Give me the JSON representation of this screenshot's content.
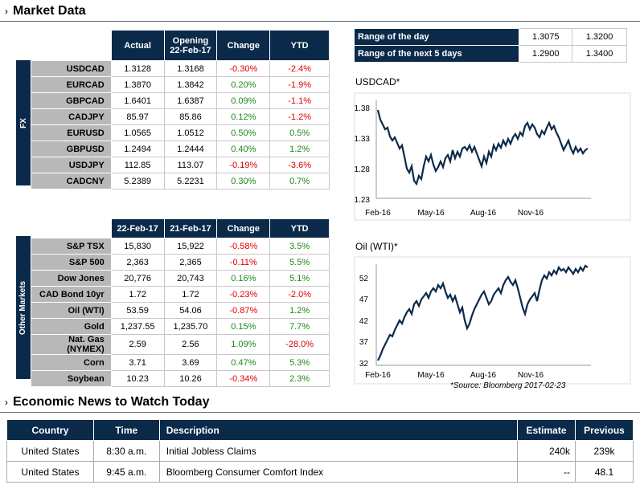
{
  "market_section": {
    "title": "Market Data"
  },
  "fx": {
    "side_label": "FX",
    "headers": {
      "actual": "Actual",
      "opening": "Opening",
      "opening_date": "22-Feb-17",
      "change": "Change",
      "ytd": "YTD"
    },
    "rows": [
      {
        "name": "USDCAD",
        "actual": "1.3128",
        "opening": "1.3168",
        "change": "-0.30%",
        "ytd": "-2.4%"
      },
      {
        "name": "EURCAD",
        "actual": "1.3870",
        "opening": "1.3842",
        "change": "0.20%",
        "ytd": "-1.9%"
      },
      {
        "name": "GBPCAD",
        "actual": "1.6401",
        "opening": "1.6387",
        "change": "0.09%",
        "ytd": "-1.1%"
      },
      {
        "name": "CADJPY",
        "actual": "85.97",
        "opening": "85.86",
        "change": "0.12%",
        "ytd": "-1.2%"
      },
      {
        "name": "EURUSD",
        "actual": "1.0565",
        "opening": "1.0512",
        "change": "0.50%",
        "ytd": "0.5%"
      },
      {
        "name": "GBPUSD",
        "actual": "1.2494",
        "opening": "1.2444",
        "change": "0.40%",
        "ytd": "1.2%"
      },
      {
        "name": "USDJPY",
        "actual": "112.85",
        "opening": "113.07",
        "change": "-0.19%",
        "ytd": "-3.6%"
      },
      {
        "name": "CADCNY",
        "actual": "5.2389",
        "opening": "5.2231",
        "change": "0.30%",
        "ytd": "0.7%"
      }
    ]
  },
  "ranges": [
    {
      "label": "Range of the day",
      "low": "1.3075",
      "high": "1.3200"
    },
    {
      "label": "Range of the next 5 days",
      "low": "1.2900",
      "high": "1.3400"
    }
  ],
  "charts": {
    "usdcad": {
      "title": "USDCAD*",
      "yticks": [
        "1.38",
        "1.33",
        "1.28",
        "1.23"
      ],
      "xticks": [
        "Feb-16",
        "May-16",
        "Aug-16",
        "Nov-16"
      ]
    },
    "oil": {
      "title": "Oil (WTI)*",
      "yticks": [
        "52",
        "47",
        "42",
        "37",
        "32"
      ],
      "xticks": [
        "Feb-16",
        "May-16",
        "Aug-16",
        "Nov-16"
      ]
    },
    "source": "*Source: Bloomberg 2017-02-23"
  },
  "other": {
    "side_label": "Other Markets",
    "headers": {
      "d1": "22-Feb-17",
      "d2": "21-Feb-17",
      "change": "Change",
      "ytd": "YTD"
    },
    "rows": [
      {
        "name": "S&P TSX",
        "d1": "15,830",
        "d2": "15,922",
        "change": "-0.58%",
        "ytd": "3.5%"
      },
      {
        "name": "S&P 500",
        "d1": "2,363",
        "d2": "2,365",
        "change": "-0.11%",
        "ytd": "5.5%"
      },
      {
        "name": "Dow Jones",
        "d1": "20,776",
        "d2": "20,743",
        "change": "0.16%",
        "ytd": "5.1%"
      },
      {
        "name": "CAD Bond 10yr",
        "d1": "1.72",
        "d2": "1.72",
        "change": "-0.23%",
        "ytd": "-2.0%"
      },
      {
        "name": "Oil (WTI)",
        "d1": "53.59",
        "d2": "54.06",
        "change": "-0.87%",
        "ytd": "1.2%"
      },
      {
        "name": "Gold",
        "d1": "1,237.55",
        "d2": "1,235.70",
        "change": "0.15%",
        "ytd": "7.7%"
      },
      {
        "name": "Nat. Gas (NYMEX)",
        "d1": "2.59",
        "d2": "2.56",
        "change": "1.09%",
        "ytd": "-28.0%"
      },
      {
        "name": "Corn",
        "d1": "3.71",
        "d2": "3.69",
        "change": "0.47%",
        "ytd": "5.3%"
      },
      {
        "name": "Soybean",
        "d1": "10.23",
        "d2": "10.26",
        "change": "-0.34%",
        "ytd": "2.3%"
      }
    ]
  },
  "news_section": {
    "title": "Economic News to Watch Today"
  },
  "news": {
    "headers": {
      "country": "Country",
      "time": "Time",
      "description": "Description",
      "estimate": "Estimate",
      "previous": "Previous"
    },
    "rows": [
      {
        "country": "United States",
        "time": "8:30 a.m.",
        "description": "Initial Jobless Claims",
        "estimate": "240k",
        "previous": "239k"
      },
      {
        "country": "United States",
        "time": "9:45 a.m.",
        "description": "Bloomberg Consumer Comfort Index",
        "estimate": "--",
        "previous": "48.1"
      }
    ]
  },
  "colors": {
    "header_navy": "#0b2a4a",
    "label_grey": "#b8b8b8",
    "negative": "#e00000",
    "positive": "#1a8a1a"
  }
}
